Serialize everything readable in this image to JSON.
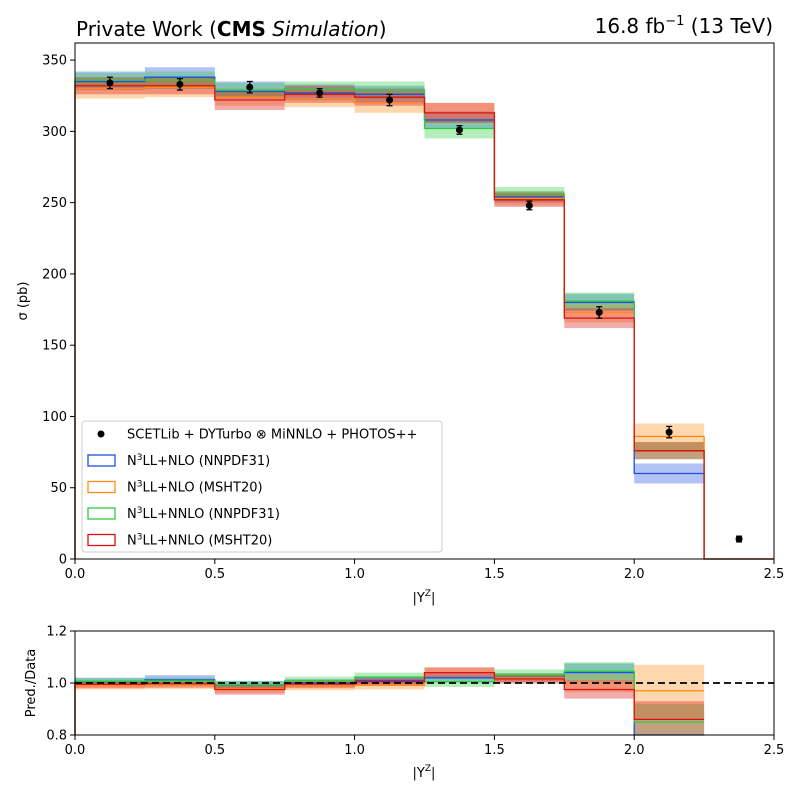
{
  "header": {
    "left_prefix": "Private Work (",
    "left_bold": "CMS",
    "left_italic": "Simulation",
    "left_suffix": ")",
    "right_pre": "16.8 fb",
    "right_sup": "−1",
    "right_post": " (13 TeV)"
  },
  "colors": {
    "blue": "#1f4fe0",
    "orange": "#ff8c1a",
    "green": "#2ecc40",
    "red": "#dd1111",
    "data": "#000000"
  },
  "legend": {
    "placement": "lower-left",
    "entries": [
      {
        "label": "SCETLib + DYTurbo ⊗ MiNNLO + PHOTOS++",
        "kind": "marker"
      },
      {
        "pre": "N",
        "sup": "3",
        "post": "LL+NLO (NNPDF31)",
        "color": "blue",
        "kind": "box"
      },
      {
        "pre": "N",
        "sup": "3",
        "post": "LL+NLO (MSHT20)",
        "color": "orange",
        "kind": "box"
      },
      {
        "pre": "N",
        "sup": "3",
        "post": "LL+NNLO (NNPDF31)",
        "color": "green",
        "kind": "box"
      },
      {
        "pre": "N",
        "sup": "3",
        "post": "LL+NNLO (MSHT20)",
        "color": "red",
        "kind": "box"
      }
    ]
  },
  "chart_data": [
    {
      "type": "line",
      "panel": "main",
      "xlabel": "|Y^Z|",
      "ylabel": "σ (pb)",
      "xlim": [
        0,
        2.5
      ],
      "ylim": [
        0,
        362
      ],
      "xticks": [
        "0.0",
        "0.5",
        "1.0",
        "1.5",
        "2.0",
        "2.5"
      ],
      "yticks": [
        "0",
        "50",
        "100",
        "150",
        "200",
        "250",
        "300",
        "350"
      ],
      "bin_edges": [
        0,
        0.25,
        0.5,
        0.75,
        1.0,
        1.25,
        1.5,
        1.75,
        2.0,
        2.25,
        2.5
      ],
      "data": {
        "x": [
          0.125,
          0.375,
          0.625,
          0.875,
          1.125,
          1.375,
          1.625,
          1.875,
          2.125,
          2.375
        ],
        "y": [
          334,
          333,
          331,
          327,
          322,
          301,
          248,
          173,
          89,
          14
        ],
        "err": [
          4,
          4,
          4,
          3,
          4,
          3,
          3,
          4,
          4,
          2
        ]
      },
      "series": [
        {
          "label_index": 1,
          "color": "blue",
          "values": [
            335,
            338,
            328,
            327,
            326,
            308,
            254,
            180,
            60,
            0
          ],
          "band_low": [
            329,
            330,
            323,
            322,
            320,
            302,
            250,
            174,
            53,
            0
          ],
          "band_high": [
            342,
            345,
            335,
            333,
            332,
            314,
            258,
            186,
            67,
            0
          ]
        },
        {
          "label_index": 2,
          "color": "orange",
          "values": [
            330,
            331,
            324,
            323,
            320,
            313,
            253,
            173,
            86,
            0
          ],
          "band_low": [
            323,
            324,
            318,
            317,
            313,
            306,
            248,
            166,
            75,
            0
          ],
          "band_high": [
            337,
            338,
            330,
            329,
            327,
            320,
            258,
            180,
            95,
            0
          ]
        },
        {
          "label_index": 3,
          "color": "green",
          "values": [
            336,
            336,
            329,
            330,
            329,
            302,
            256,
            181,
            76,
            0
          ],
          "band_low": [
            331,
            330,
            324,
            325,
            323,
            295,
            251,
            175,
            70,
            0
          ],
          "band_high": [
            341,
            342,
            334,
            335,
            335,
            309,
            261,
            187,
            82,
            0
          ]
        },
        {
          "label_index": 4,
          "color": "red",
          "values": [
            332,
            332,
            322,
            326,
            324,
            313,
            252,
            169,
            76,
            0
          ],
          "band_low": [
            326,
            326,
            315,
            320,
            318,
            306,
            247,
            162,
            70,
            0
          ],
          "band_high": [
            338,
            338,
            329,
            332,
            330,
            320,
            257,
            176,
            82,
            0
          ]
        }
      ]
    },
    {
      "type": "line",
      "panel": "ratio",
      "xlabel": "|Y^Z|",
      "ylabel": "Pred./Data",
      "xlim": [
        0,
        2.5
      ],
      "ylim": [
        0.8,
        1.2
      ],
      "xticks": [
        "0.0",
        "0.5",
        "1.0",
        "1.5",
        "2.0",
        "2.5"
      ],
      "yticks": [
        "0.8",
        "1.0",
        "1.2"
      ],
      "reference_line": 1.0,
      "bin_edges": [
        0,
        0.25,
        0.5,
        0.75,
        1.0,
        1.25,
        1.5,
        1.75,
        2.0,
        2.25,
        2.5
      ],
      "series": [
        {
          "color": "blue",
          "values": [
            1.005,
            1.012,
            0.993,
            1.0,
            1.01,
            1.02,
            1.022,
            1.04,
            0.67,
            null
          ],
          "band_low": [
            0.99,
            0.997,
            0.978,
            0.985,
            0.994,
            1.003,
            1.005,
            1.005,
            0.6,
            null
          ],
          "band_high": [
            1.02,
            1.03,
            1.008,
            1.015,
            1.026,
            1.038,
            1.038,
            1.075,
            0.75,
            null
          ]
        },
        {
          "color": "orange",
          "values": [
            0.99,
            0.992,
            0.978,
            0.988,
            0.992,
            1.04,
            1.02,
            1.0,
            0.97,
            null
          ],
          "band_low": [
            0.975,
            0.977,
            0.962,
            0.972,
            0.975,
            1.02,
            1.003,
            0.965,
            0.86,
            null
          ],
          "band_high": [
            1.005,
            1.007,
            0.994,
            1.004,
            1.009,
            1.06,
            1.037,
            1.035,
            1.07,
            null
          ]
        },
        {
          "color": "green",
          "values": [
            1.007,
            1.008,
            0.994,
            1.008,
            1.022,
            1.005,
            1.032,
            1.045,
            0.85,
            null
          ],
          "band_low": [
            0.993,
            0.995,
            0.98,
            0.992,
            1.005,
            0.985,
            1.012,
            1.01,
            0.78,
            null
          ],
          "band_high": [
            1.02,
            1.022,
            1.008,
            1.024,
            1.04,
            1.025,
            1.052,
            1.08,
            0.92,
            null
          ]
        },
        {
          "color": "red",
          "values": [
            0.995,
            0.997,
            0.975,
            0.996,
            1.005,
            1.04,
            1.016,
            0.975,
            0.86,
            null
          ],
          "band_low": [
            0.98,
            0.982,
            0.955,
            0.98,
            0.988,
            1.02,
            0.998,
            0.94,
            0.79,
            null
          ],
          "band_high": [
            1.01,
            1.012,
            0.995,
            1.012,
            1.022,
            1.06,
            1.034,
            1.01,
            0.93,
            null
          ]
        }
      ]
    }
  ]
}
